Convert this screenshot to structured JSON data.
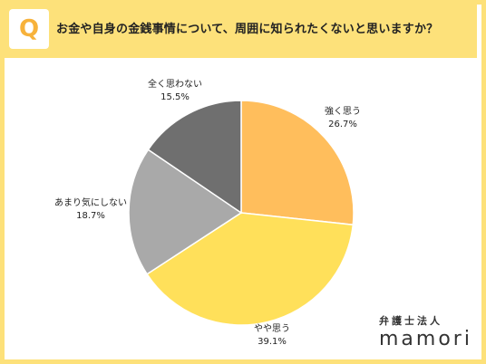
{
  "question": {
    "badge": "Q",
    "text": "お金や自身の金銭事情について、周囲に知られたくないと思いますか？"
  },
  "colors": {
    "frame": "#fde17a",
    "badge_text": "#f7b23b"
  },
  "chart_data": {
    "type": "pie",
    "title": "",
    "slices": [
      {
        "label": "強く思う",
        "value": 26.7,
        "display": "26.7%",
        "color": "#ffbe5c"
      },
      {
        "label": "やや思う",
        "value": 39.1,
        "display": "39.1%",
        "color": "#ffe05a"
      },
      {
        "label": "あまり気にしない",
        "value": 18.7,
        "display": "18.7%",
        "color": "#a9a9a9"
      },
      {
        "label": "全く思わない",
        "value": 15.5,
        "display": "15.5%",
        "color": "#6f6f6f"
      }
    ]
  },
  "brand": {
    "sub": "弁護士法人",
    "name": "mamori"
  }
}
